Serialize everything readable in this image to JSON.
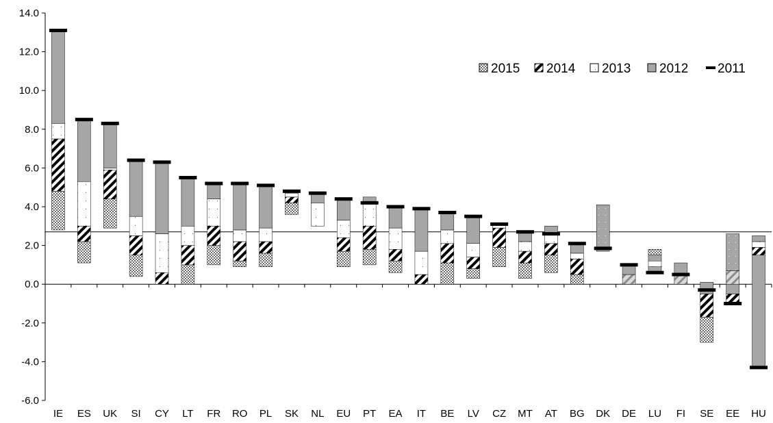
{
  "chart_data": {
    "type": "bar",
    "subtype": "stacked-floating-with-markers",
    "ylim": [
      -6,
      14
    ],
    "y_ticks": [
      "-6.0",
      "-4.0",
      "-2.0",
      "0.0",
      "2.0",
      "4.0",
      "6.0",
      "8.0",
      "10.0",
      "12.0",
      "14.0"
    ],
    "reference_line": 2.7,
    "grid": false,
    "legend_position": "top-right",
    "legend": [
      {
        "key": "s2015",
        "label": "2015",
        "style": "checker"
      },
      {
        "key": "s2014",
        "label": "2014",
        "style": "hatch"
      },
      {
        "key": "s2013",
        "label": "2013",
        "style": "white"
      },
      {
        "key": "s2012",
        "label": "2012",
        "style": "gray"
      },
      {
        "key": "s2011",
        "label": "2011",
        "style": "marker"
      }
    ],
    "colors": {
      "gray": "#a6a6a6",
      "light_gray": "#c0c0c0",
      "black": "#000000",
      "white": "#ffffff"
    },
    "categories": [
      "IE",
      "ES",
      "UK",
      "SI",
      "CY",
      "LT",
      "FR",
      "RO",
      "PL",
      "SK",
      "NL",
      "EU",
      "PT",
      "EA",
      "IT",
      "BE",
      "LV",
      "CZ",
      "MT",
      "AT",
      "BG",
      "DK",
      "DE",
      "LU",
      "FI",
      "SE",
      "EE",
      "HU"
    ],
    "bars": [
      {
        "segments": [
          [
            2.8,
            4.8,
            "checker"
          ],
          [
            4.8,
            7.5,
            "hatch"
          ],
          [
            7.5,
            8.3,
            "white"
          ],
          [
            8.3,
            13.1,
            "gray"
          ]
        ],
        "marker": 13.1
      },
      {
        "segments": [
          [
            1.1,
            2.2,
            "checker"
          ],
          [
            2.2,
            3.0,
            "hatch"
          ],
          [
            3.0,
            5.3,
            "white"
          ],
          [
            5.3,
            8.5,
            "gray"
          ]
        ],
        "marker": 8.5
      },
      {
        "segments": [
          [
            2.9,
            4.4,
            "checker"
          ],
          [
            4.4,
            5.9,
            "hatch"
          ],
          [
            5.9,
            6.0,
            "white"
          ],
          [
            6.0,
            8.3,
            "gray"
          ]
        ],
        "marker": 8.3
      },
      {
        "segments": [
          [
            0.4,
            1.5,
            "checker"
          ],
          [
            1.5,
            2.5,
            "hatch"
          ],
          [
            2.5,
            3.5,
            "white"
          ],
          [
            3.5,
            6.4,
            "gray"
          ]
        ],
        "marker": 6.4
      },
      {
        "segments": [
          [
            0.0,
            0.6,
            "hatch"
          ],
          [
            0.6,
            2.6,
            "white"
          ],
          [
            2.6,
            6.3,
            "gray"
          ]
        ],
        "marker": 6.3
      },
      {
        "segments": [
          [
            0.0,
            1.0,
            "checker"
          ],
          [
            1.0,
            2.0,
            "hatch"
          ],
          [
            2.0,
            3.0,
            "white"
          ],
          [
            3.0,
            5.5,
            "gray"
          ]
        ],
        "marker": 5.5
      },
      {
        "segments": [
          [
            1.0,
            2.0,
            "checker"
          ],
          [
            2.0,
            3.0,
            "hatch"
          ],
          [
            3.0,
            4.4,
            "white"
          ],
          [
            4.4,
            5.2,
            "gray"
          ]
        ],
        "marker": 5.2
      },
      {
        "segments": [
          [
            0.9,
            1.2,
            "checker"
          ],
          [
            1.2,
            2.2,
            "hatch"
          ],
          [
            2.2,
            2.8,
            "white"
          ],
          [
            2.8,
            5.2,
            "gray"
          ]
        ],
        "marker": 5.2
      },
      {
        "segments": [
          [
            0.9,
            1.6,
            "checker"
          ],
          [
            1.6,
            2.2,
            "hatch"
          ],
          [
            2.2,
            2.9,
            "white"
          ],
          [
            2.9,
            5.1,
            "gray"
          ]
        ],
        "marker": 5.1
      },
      {
        "segments": [
          [
            3.6,
            4.2,
            "checker"
          ],
          [
            4.2,
            4.5,
            "hatch"
          ],
          [
            4.5,
            4.7,
            "white"
          ],
          [
            4.7,
            4.8,
            "gray"
          ]
        ],
        "marker": 4.8
      },
      {
        "segments": [
          [
            3.0,
            4.2,
            "white"
          ],
          [
            4.2,
            4.7,
            "gray"
          ]
        ],
        "marker": 4.7
      },
      {
        "segments": [
          [
            0.9,
            1.7,
            "checker"
          ],
          [
            1.7,
            2.4,
            "hatch"
          ],
          [
            2.4,
            3.3,
            "white"
          ],
          [
            3.3,
            4.4,
            "gray"
          ]
        ],
        "marker": 4.4
      },
      {
        "segments": [
          [
            1.0,
            1.8,
            "checker"
          ],
          [
            1.8,
            3.0,
            "hatch"
          ],
          [
            3.0,
            4.2,
            "white"
          ],
          [
            4.2,
            4.5,
            "gray"
          ]
        ],
        "marker": 4.2
      },
      {
        "segments": [
          [
            0.6,
            1.2,
            "checker"
          ],
          [
            1.2,
            1.8,
            "hatch"
          ],
          [
            1.8,
            2.9,
            "white"
          ],
          [
            2.9,
            4.0,
            "gray"
          ]
        ],
        "marker": 4.0
      },
      {
        "segments": [
          [
            0.0,
            0.5,
            "hatch"
          ],
          [
            0.5,
            1.7,
            "white"
          ],
          [
            1.7,
            3.9,
            "gray"
          ]
        ],
        "marker": 3.9
      },
      {
        "segments": [
          [
            0.0,
            1.1,
            "checker"
          ],
          [
            1.1,
            2.1,
            "hatch"
          ],
          [
            2.1,
            2.8,
            "white"
          ],
          [
            2.8,
            3.7,
            "gray"
          ]
        ],
        "marker": 3.7
      },
      {
        "segments": [
          [
            0.3,
            0.8,
            "checker"
          ],
          [
            0.8,
            1.4,
            "hatch"
          ],
          [
            1.4,
            2.1,
            "white"
          ],
          [
            2.1,
            3.5,
            "gray"
          ]
        ],
        "marker": 3.5
      },
      {
        "segments": [
          [
            0.9,
            1.9,
            "checker"
          ],
          [
            1.9,
            2.9,
            "hatch"
          ],
          [
            2.9,
            3.1,
            "white"
          ]
        ],
        "marker": 3.1
      },
      {
        "segments": [
          [
            0.3,
            1.1,
            "checker"
          ],
          [
            1.1,
            1.7,
            "hatch"
          ],
          [
            1.7,
            2.2,
            "white"
          ],
          [
            2.2,
            2.7,
            "gray"
          ]
        ],
        "marker": 2.7
      },
      {
        "segments": [
          [
            0.6,
            1.5,
            "checker"
          ],
          [
            1.5,
            2.1,
            "hatch"
          ],
          [
            2.1,
            2.6,
            "white"
          ],
          [
            2.6,
            3.0,
            "gray"
          ]
        ],
        "marker": 2.6
      },
      {
        "segments": [
          [
            0.0,
            0.5,
            "checker"
          ],
          [
            0.5,
            1.3,
            "hatch"
          ],
          [
            1.3,
            1.6,
            "white"
          ],
          [
            1.6,
            2.1,
            "gray"
          ]
        ],
        "marker": 2.1
      },
      {
        "segments": [
          [
            1.7,
            4.1,
            "gray-dotted"
          ]
        ],
        "marker": 1.85
      },
      {
        "segments": [
          [
            0.0,
            0.5,
            "light-hatch"
          ],
          [
            0.5,
            1.0,
            "gray"
          ]
        ],
        "marker": 1.0
      },
      {
        "segments": [
          [
            0.6,
            0.9,
            "gray"
          ],
          [
            0.9,
            1.2,
            "white"
          ],
          [
            1.2,
            1.5,
            "gray"
          ],
          [
            1.5,
            1.8,
            "checker"
          ]
        ],
        "marker": 0.6
      },
      {
        "segments": [
          [
            0.0,
            0.5,
            "light-hatch"
          ],
          [
            0.5,
            1.1,
            "gray"
          ]
        ],
        "marker": 0.5
      },
      {
        "segments": [
          [
            -3.0,
            -1.7,
            "checker"
          ],
          [
            -1.7,
            -0.5,
            "hatch"
          ],
          [
            -0.5,
            0.1,
            "gray"
          ]
        ],
        "marker": -0.3
      },
      {
        "segments": [
          [
            -1.0,
            -0.5,
            "hatch"
          ],
          [
            -0.5,
            0.0,
            "gray"
          ],
          [
            0.0,
            0.7,
            "light-hatch"
          ],
          [
            0.7,
            2.6,
            "gray-dotted"
          ]
        ],
        "marker": -1.0
      },
      {
        "segments": [
          [
            -4.3,
            1.5,
            "gray"
          ],
          [
            1.5,
            1.9,
            "hatch"
          ],
          [
            1.9,
            2.2,
            "white"
          ],
          [
            2.2,
            2.5,
            "gray"
          ]
        ],
        "marker": -4.3
      }
    ]
  }
}
